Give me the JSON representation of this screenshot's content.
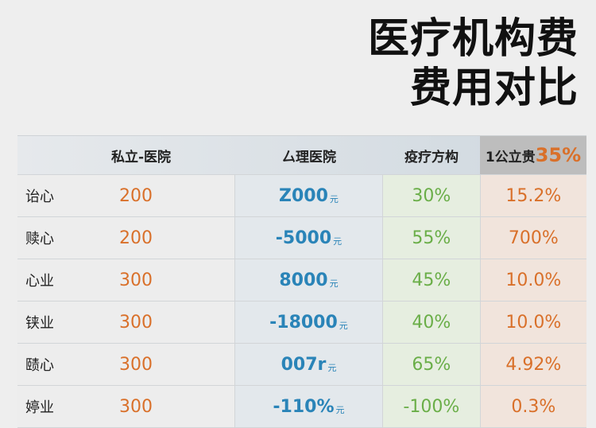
{
  "title": {
    "line1": "医疗机构费",
    "line2": "费用对比"
  },
  "table": {
    "headers": {
      "col1": "私立-医院",
      "col2": "厶理医院",
      "col3": "疫疗方构",
      "col4_label": "1公立贵",
      "col4_pct": "35%"
    },
    "rows": [
      {
        "label": "诒心",
        "v1": "200",
        "v2": "Z000",
        "unit": "元",
        "v3": "30%",
        "v4": "15.2%"
      },
      {
        "label": "赎心",
        "v1": "200",
        "v2": "-5000",
        "unit": "元",
        "v3": "55%",
        "v4": "700%"
      },
      {
        "label": "心业",
        "v1": "300",
        "v2": "8000",
        "unit": "元",
        "v3": "45%",
        "v4": "10.0%"
      },
      {
        "label": "铗业",
        "v1": "300",
        "v2": "-18000",
        "unit": "元",
        "v3": "40%",
        "v4": "10.0%"
      },
      {
        "label": "赜心",
        "v1": "300",
        "v2": "007r",
        "unit": "元",
        "v3": "65%",
        "v4": "4.92%"
      },
      {
        "label": "婷业",
        "v1": "300",
        "v2": "-110%",
        "unit": "元",
        "v3": "-100%",
        "v4": "0.3%"
      }
    ]
  },
  "colors": {
    "orange": "#d9702a",
    "blue": "#2a84b8",
    "green": "#6aae48"
  }
}
